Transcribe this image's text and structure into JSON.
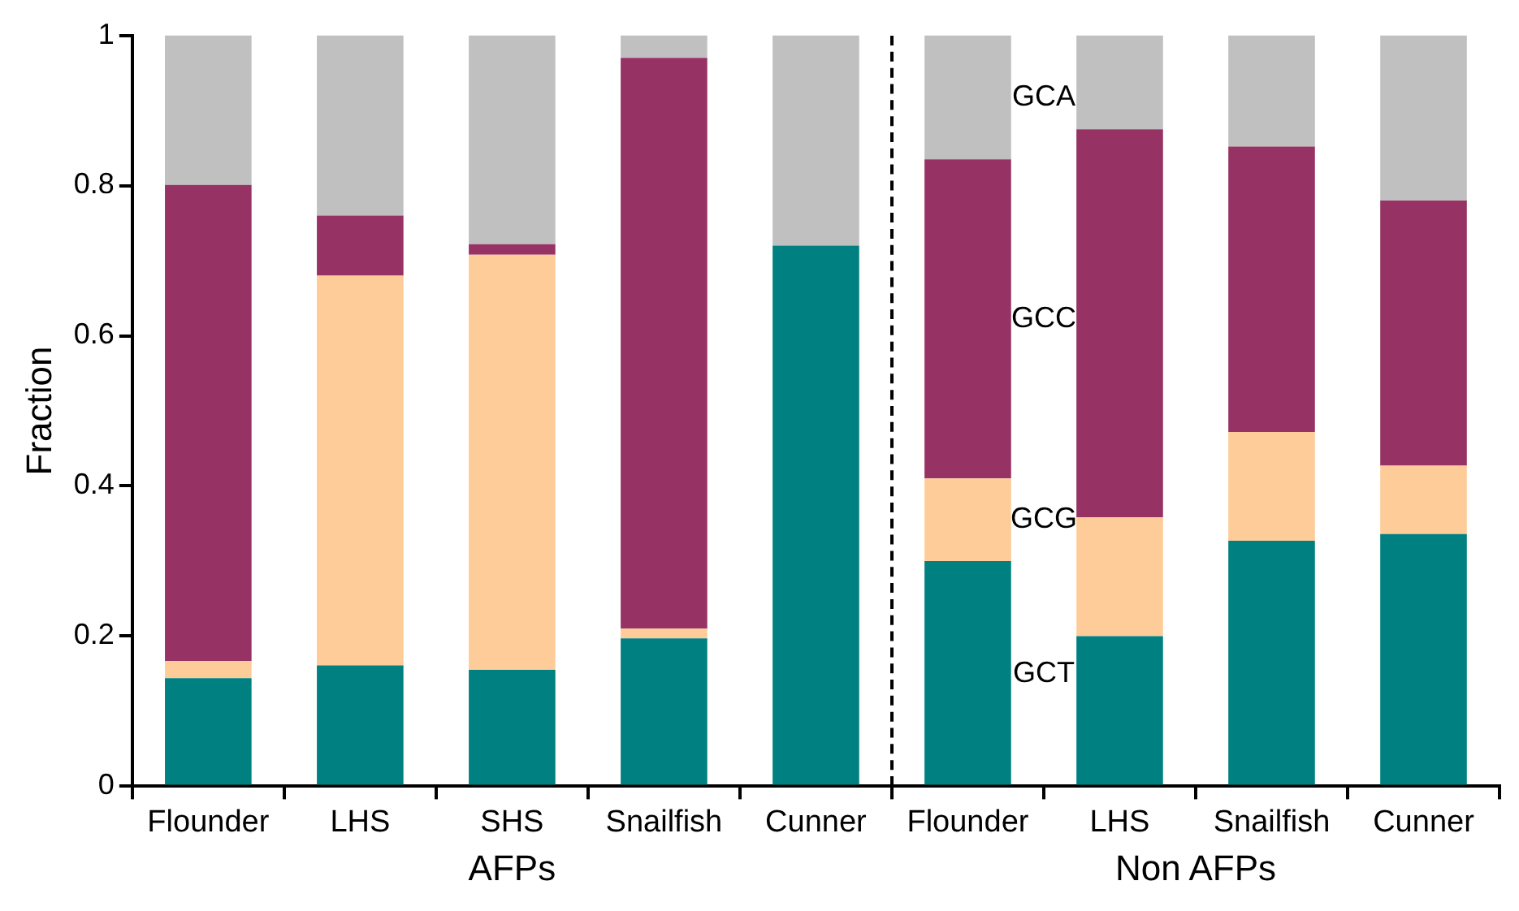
{
  "chart_data": {
    "type": "bar",
    "stacked": true,
    "ylabel": "Fraction",
    "categories": [
      "Flounder",
      "LHS",
      "SHS",
      "Snailfish",
      "Cunner",
      "Flounder",
      "LHS",
      "Snailfish",
      "Cunner"
    ],
    "series": [
      {
        "name": "GCT",
        "color": "#008080",
        "values": [
          0.144,
          0.161,
          0.155,
          0.197,
          0.72,
          0.3,
          0.2,
          0.327,
          0.336
        ]
      },
      {
        "name": "GCG",
        "color": "#fdcc98",
        "values": [
          0.023,
          0.519,
          0.553,
          0.013,
          0,
          0.11,
          0.158,
          0.145,
          0.091
        ]
      },
      {
        "name": "GCC",
        "color": "#963264",
        "values": [
          0.634,
          0.08,
          0.014,
          0.76,
          0,
          0.425,
          0.517,
          0.38,
          0.353
        ]
      },
      {
        "name": "GCA",
        "color": "#c0c0c0",
        "values": [
          0.199,
          0.24,
          0.278,
          0.03,
          0.28,
          0.165,
          0.125,
          0.148,
          0.22
        ]
      }
    ],
    "ylim": [
      0,
      1
    ],
    "yticks": [
      0,
      0.2,
      0.4,
      0.6,
      0.8,
      1
    ],
    "grid": false,
    "legend": false,
    "annotations": [
      "AFPs",
      "Non AFPs"
    ]
  }
}
